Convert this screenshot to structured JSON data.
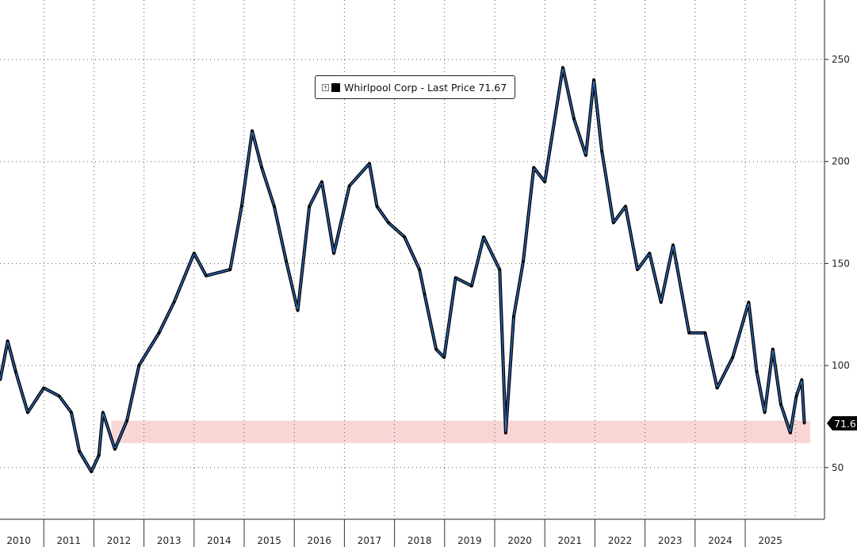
{
  "chart_data": {
    "type": "line",
    "title": "",
    "legend": {
      "label": "Whirlpool Corp - Last Price 71.67",
      "placement": "top-center"
    },
    "last_price_label": "71.67",
    "y_axis": {
      "side": "right",
      "ticks": [
        50,
        100,
        150,
        200,
        250
      ],
      "ylim": [
        26,
        280
      ]
    },
    "x_axis": {
      "ticks": [
        "2010",
        "2011",
        "2012",
        "2013",
        "2014",
        "2015",
        "2016",
        "2017",
        "2018",
        "2019",
        "2020",
        "2021",
        "2022",
        "2023",
        "2024",
        "2025"
      ],
      "xlim": [
        2010.0,
        2026.4
      ]
    },
    "grid": true,
    "support_band": {
      "low": 62,
      "high": 73,
      "color": "#f9d6d6"
    },
    "colors": {
      "line": "#000000",
      "highlight": "#2e6fc4"
    },
    "series": [
      {
        "name": "Whirlpool Corp - Last Price",
        "x": [
          2010.13,
          2010.28,
          2010.44,
          2010.68,
          2011.0,
          2011.31,
          2011.55,
          2011.71,
          2011.95,
          2012.1,
          2012.18,
          2012.42,
          2012.66,
          2012.9,
          2013.3,
          2013.6,
          2014.0,
          2014.24,
          2014.72,
          2014.95,
          2015.16,
          2015.35,
          2015.6,
          2015.84,
          2016.07,
          2016.3,
          2016.55,
          2016.79,
          2017.1,
          2017.5,
          2017.65,
          2017.88,
          2018.2,
          2018.5,
          2018.6,
          2018.83,
          2018.99,
          2019.22,
          2019.54,
          2019.78,
          2020.1,
          2020.22,
          2020.38,
          2020.57,
          2020.78,
          2021.0,
          2021.36,
          2021.58,
          2021.82,
          2021.98,
          2022.14,
          2022.37,
          2022.61,
          2022.85,
          2023.09,
          2023.32,
          2023.56,
          2023.88,
          2024.2,
          2024.44,
          2024.75,
          2025.07,
          2025.23,
          2025.39,
          2025.55,
          2025.71,
          2025.9,
          2026.02,
          2026.13,
          2026.18
        ],
        "y": [
          93,
          112,
          97,
          77,
          89,
          85,
          77,
          58,
          48,
          56,
          77,
          59,
          73,
          100,
          116,
          131,
          155,
          144,
          147,
          178,
          215,
          197,
          178,
          151,
          127,
          178,
          190,
          155,
          188,
          199,
          178,
          170,
          163,
          147,
          135,
          108,
          104,
          143,
          139,
          163,
          147,
          67,
          124,
          151,
          197,
          190,
          246,
          221,
          203,
          240,
          205,
          170,
          178,
          147,
          155,
          131,
          159,
          116,
          116,
          89,
          104,
          131,
          97,
          77,
          108,
          81,
          67,
          85,
          93,
          71.67
        ]
      }
    ]
  }
}
